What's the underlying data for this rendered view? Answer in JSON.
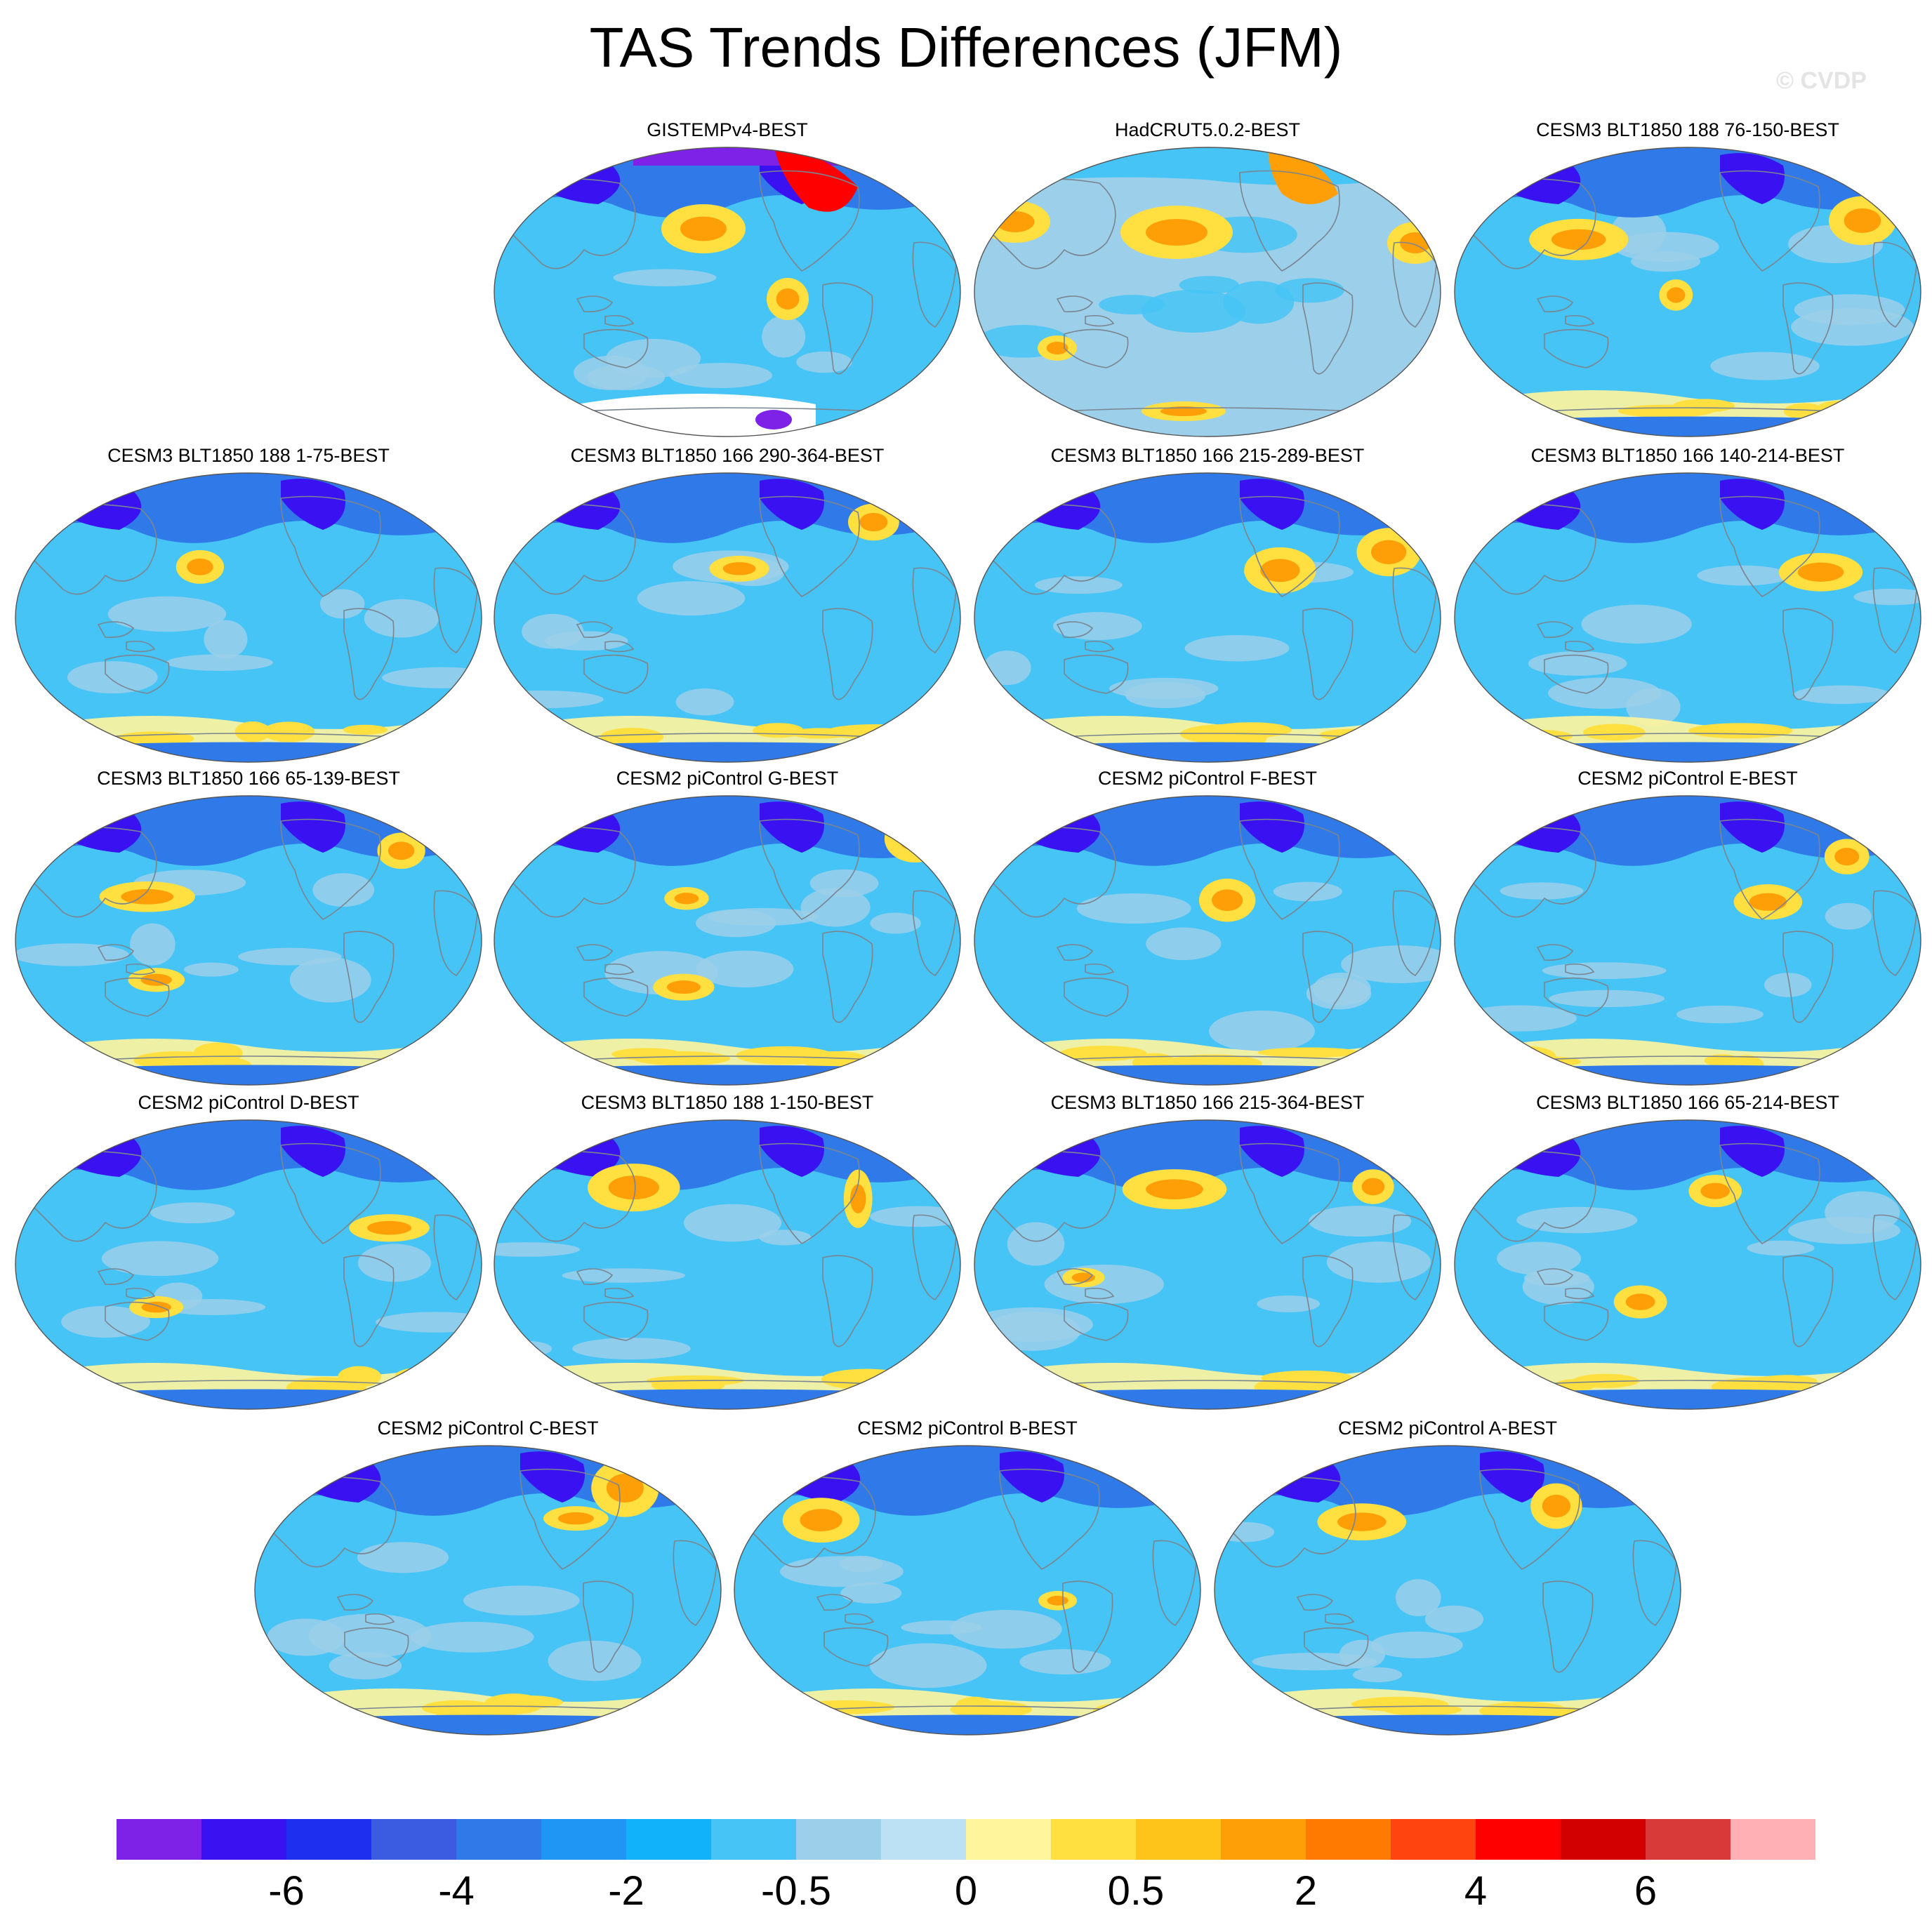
{
  "title": "TAS Trends Differences (JFM)",
  "watermark": "© CVDP",
  "panels": [
    {
      "title": "GISTEMPv4-BEST",
      "row": 0,
      "col": 1,
      "pattern": "gistemp"
    },
    {
      "title": "HadCRUT5.0.2-BEST",
      "row": 0,
      "col": 2,
      "pattern": "hadcrut"
    },
    {
      "title": "CESM3 BLT1850 188 76-150-BEST",
      "row": 0,
      "col": 3,
      "pattern": "model"
    },
    {
      "title": "CESM3 BLT1850 188 1-75-BEST",
      "row": 1,
      "col": 0,
      "pattern": "model"
    },
    {
      "title": "CESM3 BLT1850 166 290-364-BEST",
      "row": 1,
      "col": 1,
      "pattern": "model"
    },
    {
      "title": "CESM3 BLT1850 166 215-289-BEST",
      "row": 1,
      "col": 2,
      "pattern": "model"
    },
    {
      "title": "CESM3 BLT1850 166 140-214-BEST",
      "row": 1,
      "col": 3,
      "pattern": "model"
    },
    {
      "title": "CESM3 BLT1850 166 65-139-BEST",
      "row": 2,
      "col": 0,
      "pattern": "model"
    },
    {
      "title": "CESM2 piControl G-BEST",
      "row": 2,
      "col": 1,
      "pattern": "model"
    },
    {
      "title": "CESM2 piControl F-BEST",
      "row": 2,
      "col": 2,
      "pattern": "model"
    },
    {
      "title": "CESM2 piControl E-BEST",
      "row": 2,
      "col": 3,
      "pattern": "model"
    },
    {
      "title": "CESM2 piControl D-BEST",
      "row": 3,
      "col": 0,
      "pattern": "model"
    },
    {
      "title": "CESM3 BLT1850 188 1-150-BEST",
      "row": 3,
      "col": 1,
      "pattern": "model"
    },
    {
      "title": "CESM3 BLT1850 166 215-364-BEST",
      "row": 3,
      "col": 2,
      "pattern": "model"
    },
    {
      "title": "CESM3 BLT1850 166 65-214-BEST",
      "row": 3,
      "col": 3,
      "pattern": "model"
    },
    {
      "title": "CESM2 piControl C-BEST",
      "row": 4,
      "col": 0.5,
      "pattern": "model"
    },
    {
      "title": "CESM2 piControl B-BEST",
      "row": 4,
      "col": 1.5,
      "pattern": "model"
    },
    {
      "title": "CESM2 piControl A-BEST",
      "row": 4,
      "col": 2.5,
      "pattern": "model"
    }
  ],
  "colorbar": {
    "colors": [
      "#7e22e8",
      "#3a12f2",
      "#1e2ff0",
      "#3b5ce0",
      "#2f7ae8",
      "#1f96f3",
      "#12b2fa",
      "#46c4f5",
      "#9ccfea",
      "#bce0f4",
      "#fff59c",
      "#ffe040",
      "#ffc41a",
      "#ff9f08",
      "#ff7a00",
      "#ff4410",
      "#ff0000",
      "#d20000",
      "#d83a3a",
      "#ffb0b4"
    ],
    "labels": [
      "-6",
      "-4",
      "-2",
      "-0.5",
      "0",
      "0.5",
      "2",
      "4",
      "6"
    ]
  },
  "map_colors": {
    "ocean_base": "#46c4f5",
    "mid_blue": "#2f7ae8",
    "deep_blue": "#3a12f2",
    "purple": "#7e22e8",
    "light_blue": "#9ccfea",
    "pale_yellow": "#fff59c",
    "yellow": "#ffe040",
    "orange": "#ff9f08",
    "red": "#ff0000",
    "coast": "#7a8590"
  }
}
